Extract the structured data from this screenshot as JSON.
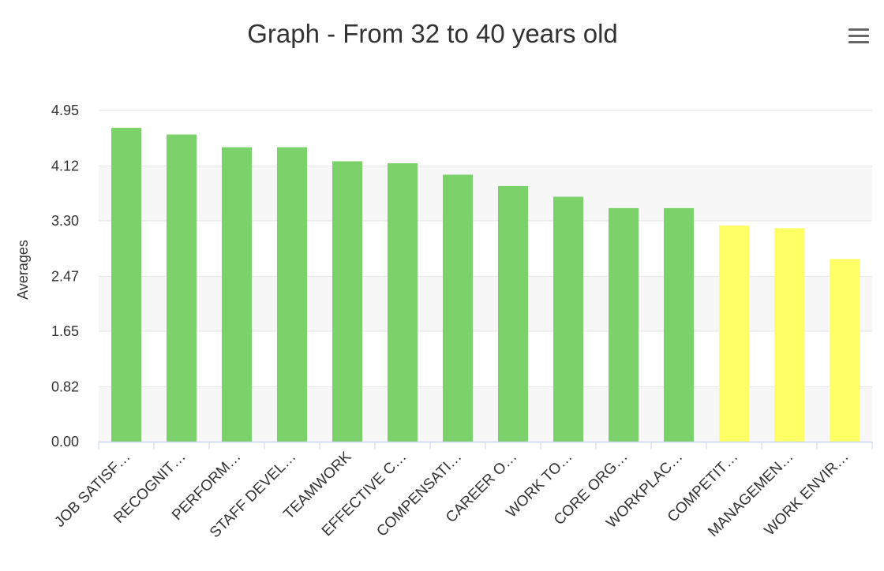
{
  "chart_data": {
    "type": "bar",
    "title": "Graph - From 32 to 40 years old",
    "xlabel": "",
    "ylabel": "Averages",
    "ylim": [
      0,
      4.95
    ],
    "yticks": [
      "0.00",
      "0.82",
      "1.65",
      "2.47",
      "3.30",
      "4.12",
      "4.95"
    ],
    "grid": true,
    "legend": "none",
    "categories": [
      "JOB SATISF…",
      "RECOGNIT…",
      "PERFORM…",
      "STAFF DEVEL…",
      "TEAMWORK",
      "EFFECTIVE C…",
      "COMPENSATI…",
      "CAREER O…",
      "WORK TO…",
      "CORE ORG…",
      "WORKPLAC…",
      "COMPETIT…",
      "MANAGEMEN…",
      "WORK ENVIR…"
    ],
    "values": [
      4.69,
      4.59,
      4.4,
      4.4,
      4.19,
      4.16,
      3.99,
      3.82,
      3.66,
      3.49,
      3.49,
      3.23,
      3.19,
      2.73
    ],
    "bar_colors": [
      "#7bd16a",
      "#7bd16a",
      "#7bd16a",
      "#7bd16a",
      "#7bd16a",
      "#7bd16a",
      "#7bd16a",
      "#7bd16a",
      "#7bd16a",
      "#7bd16a",
      "#7bd16a",
      "#ffff66",
      "#ffff66",
      "#ffff66"
    ]
  }
}
